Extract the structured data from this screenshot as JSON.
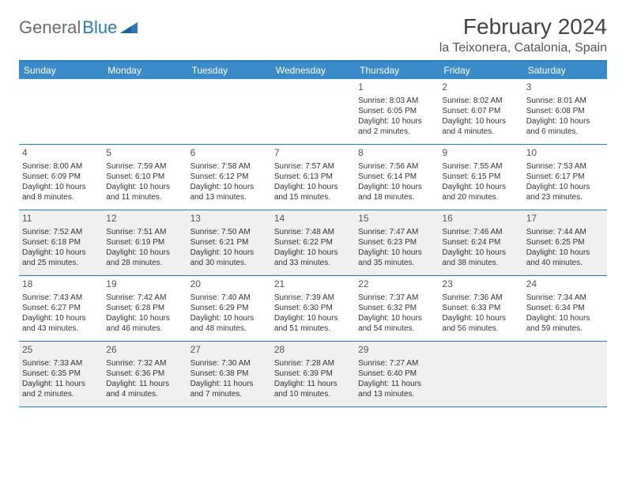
{
  "logo": {
    "text1": "General",
    "text2": "Blue"
  },
  "title": "February 2024",
  "location": "la Teixonera, Catalonia, Spain",
  "colors": {
    "header_bg": "#3b8bc9",
    "border": "#2a7ab9",
    "shaded": "#f0f0f0",
    "text": "#333333",
    "logo_gray": "#6b6b6b",
    "logo_blue": "#2a7ab9"
  },
  "dayNames": [
    "Sunday",
    "Monday",
    "Tuesday",
    "Wednesday",
    "Thursday",
    "Friday",
    "Saturday"
  ],
  "weeks": [
    [
      null,
      null,
      null,
      null,
      {
        "n": "1",
        "sr": "8:03 AM",
        "ss": "6:05 PM",
        "dl": "10 hours and 2 minutes."
      },
      {
        "n": "2",
        "sr": "8:02 AM",
        "ss": "6:07 PM",
        "dl": "10 hours and 4 minutes."
      },
      {
        "n": "3",
        "sr": "8:01 AM",
        "ss": "6:08 PM",
        "dl": "10 hours and 6 minutes."
      }
    ],
    [
      {
        "n": "4",
        "sr": "8:00 AM",
        "ss": "6:09 PM",
        "dl": "10 hours and 8 minutes."
      },
      {
        "n": "5",
        "sr": "7:59 AM",
        "ss": "6:10 PM",
        "dl": "10 hours and 11 minutes."
      },
      {
        "n": "6",
        "sr": "7:58 AM",
        "ss": "6:12 PM",
        "dl": "10 hours and 13 minutes."
      },
      {
        "n": "7",
        "sr": "7:57 AM",
        "ss": "6:13 PM",
        "dl": "10 hours and 15 minutes."
      },
      {
        "n": "8",
        "sr": "7:56 AM",
        "ss": "6:14 PM",
        "dl": "10 hours and 18 minutes."
      },
      {
        "n": "9",
        "sr": "7:55 AM",
        "ss": "6:15 PM",
        "dl": "10 hours and 20 minutes."
      },
      {
        "n": "10",
        "sr": "7:53 AM",
        "ss": "6:17 PM",
        "dl": "10 hours and 23 minutes."
      }
    ],
    [
      {
        "n": "11",
        "sr": "7:52 AM",
        "ss": "6:18 PM",
        "dl": "10 hours and 25 minutes."
      },
      {
        "n": "12",
        "sr": "7:51 AM",
        "ss": "6:19 PM",
        "dl": "10 hours and 28 minutes."
      },
      {
        "n": "13",
        "sr": "7:50 AM",
        "ss": "6:21 PM",
        "dl": "10 hours and 30 minutes."
      },
      {
        "n": "14",
        "sr": "7:48 AM",
        "ss": "6:22 PM",
        "dl": "10 hours and 33 minutes."
      },
      {
        "n": "15",
        "sr": "7:47 AM",
        "ss": "6:23 PM",
        "dl": "10 hours and 35 minutes."
      },
      {
        "n": "16",
        "sr": "7:46 AM",
        "ss": "6:24 PM",
        "dl": "10 hours and 38 minutes."
      },
      {
        "n": "17",
        "sr": "7:44 AM",
        "ss": "6:25 PM",
        "dl": "10 hours and 40 minutes."
      }
    ],
    [
      {
        "n": "18",
        "sr": "7:43 AM",
        "ss": "6:27 PM",
        "dl": "10 hours and 43 minutes."
      },
      {
        "n": "19",
        "sr": "7:42 AM",
        "ss": "6:28 PM",
        "dl": "10 hours and 46 minutes."
      },
      {
        "n": "20",
        "sr": "7:40 AM",
        "ss": "6:29 PM",
        "dl": "10 hours and 48 minutes."
      },
      {
        "n": "21",
        "sr": "7:39 AM",
        "ss": "6:30 PM",
        "dl": "10 hours and 51 minutes."
      },
      {
        "n": "22",
        "sr": "7:37 AM",
        "ss": "6:32 PM",
        "dl": "10 hours and 54 minutes."
      },
      {
        "n": "23",
        "sr": "7:36 AM",
        "ss": "6:33 PM",
        "dl": "10 hours and 56 minutes."
      },
      {
        "n": "24",
        "sr": "7:34 AM",
        "ss": "6:34 PM",
        "dl": "10 hours and 59 minutes."
      }
    ],
    [
      {
        "n": "25",
        "sr": "7:33 AM",
        "ss": "6:35 PM",
        "dl": "11 hours and 2 minutes."
      },
      {
        "n": "26",
        "sr": "7:32 AM",
        "ss": "6:36 PM",
        "dl": "11 hours and 4 minutes."
      },
      {
        "n": "27",
        "sr": "7:30 AM",
        "ss": "6:38 PM",
        "dl": "11 hours and 7 minutes."
      },
      {
        "n": "28",
        "sr": "7:28 AM",
        "ss": "6:39 PM",
        "dl": "11 hours and 10 minutes."
      },
      {
        "n": "29",
        "sr": "7:27 AM",
        "ss": "6:40 PM",
        "dl": "11 hours and 13 minutes."
      },
      null,
      null
    ]
  ],
  "shadedWeeks": [
    2,
    4
  ],
  "labels": {
    "sunrise": "Sunrise: ",
    "sunset": "Sunset: ",
    "daylight": "Daylight: "
  }
}
